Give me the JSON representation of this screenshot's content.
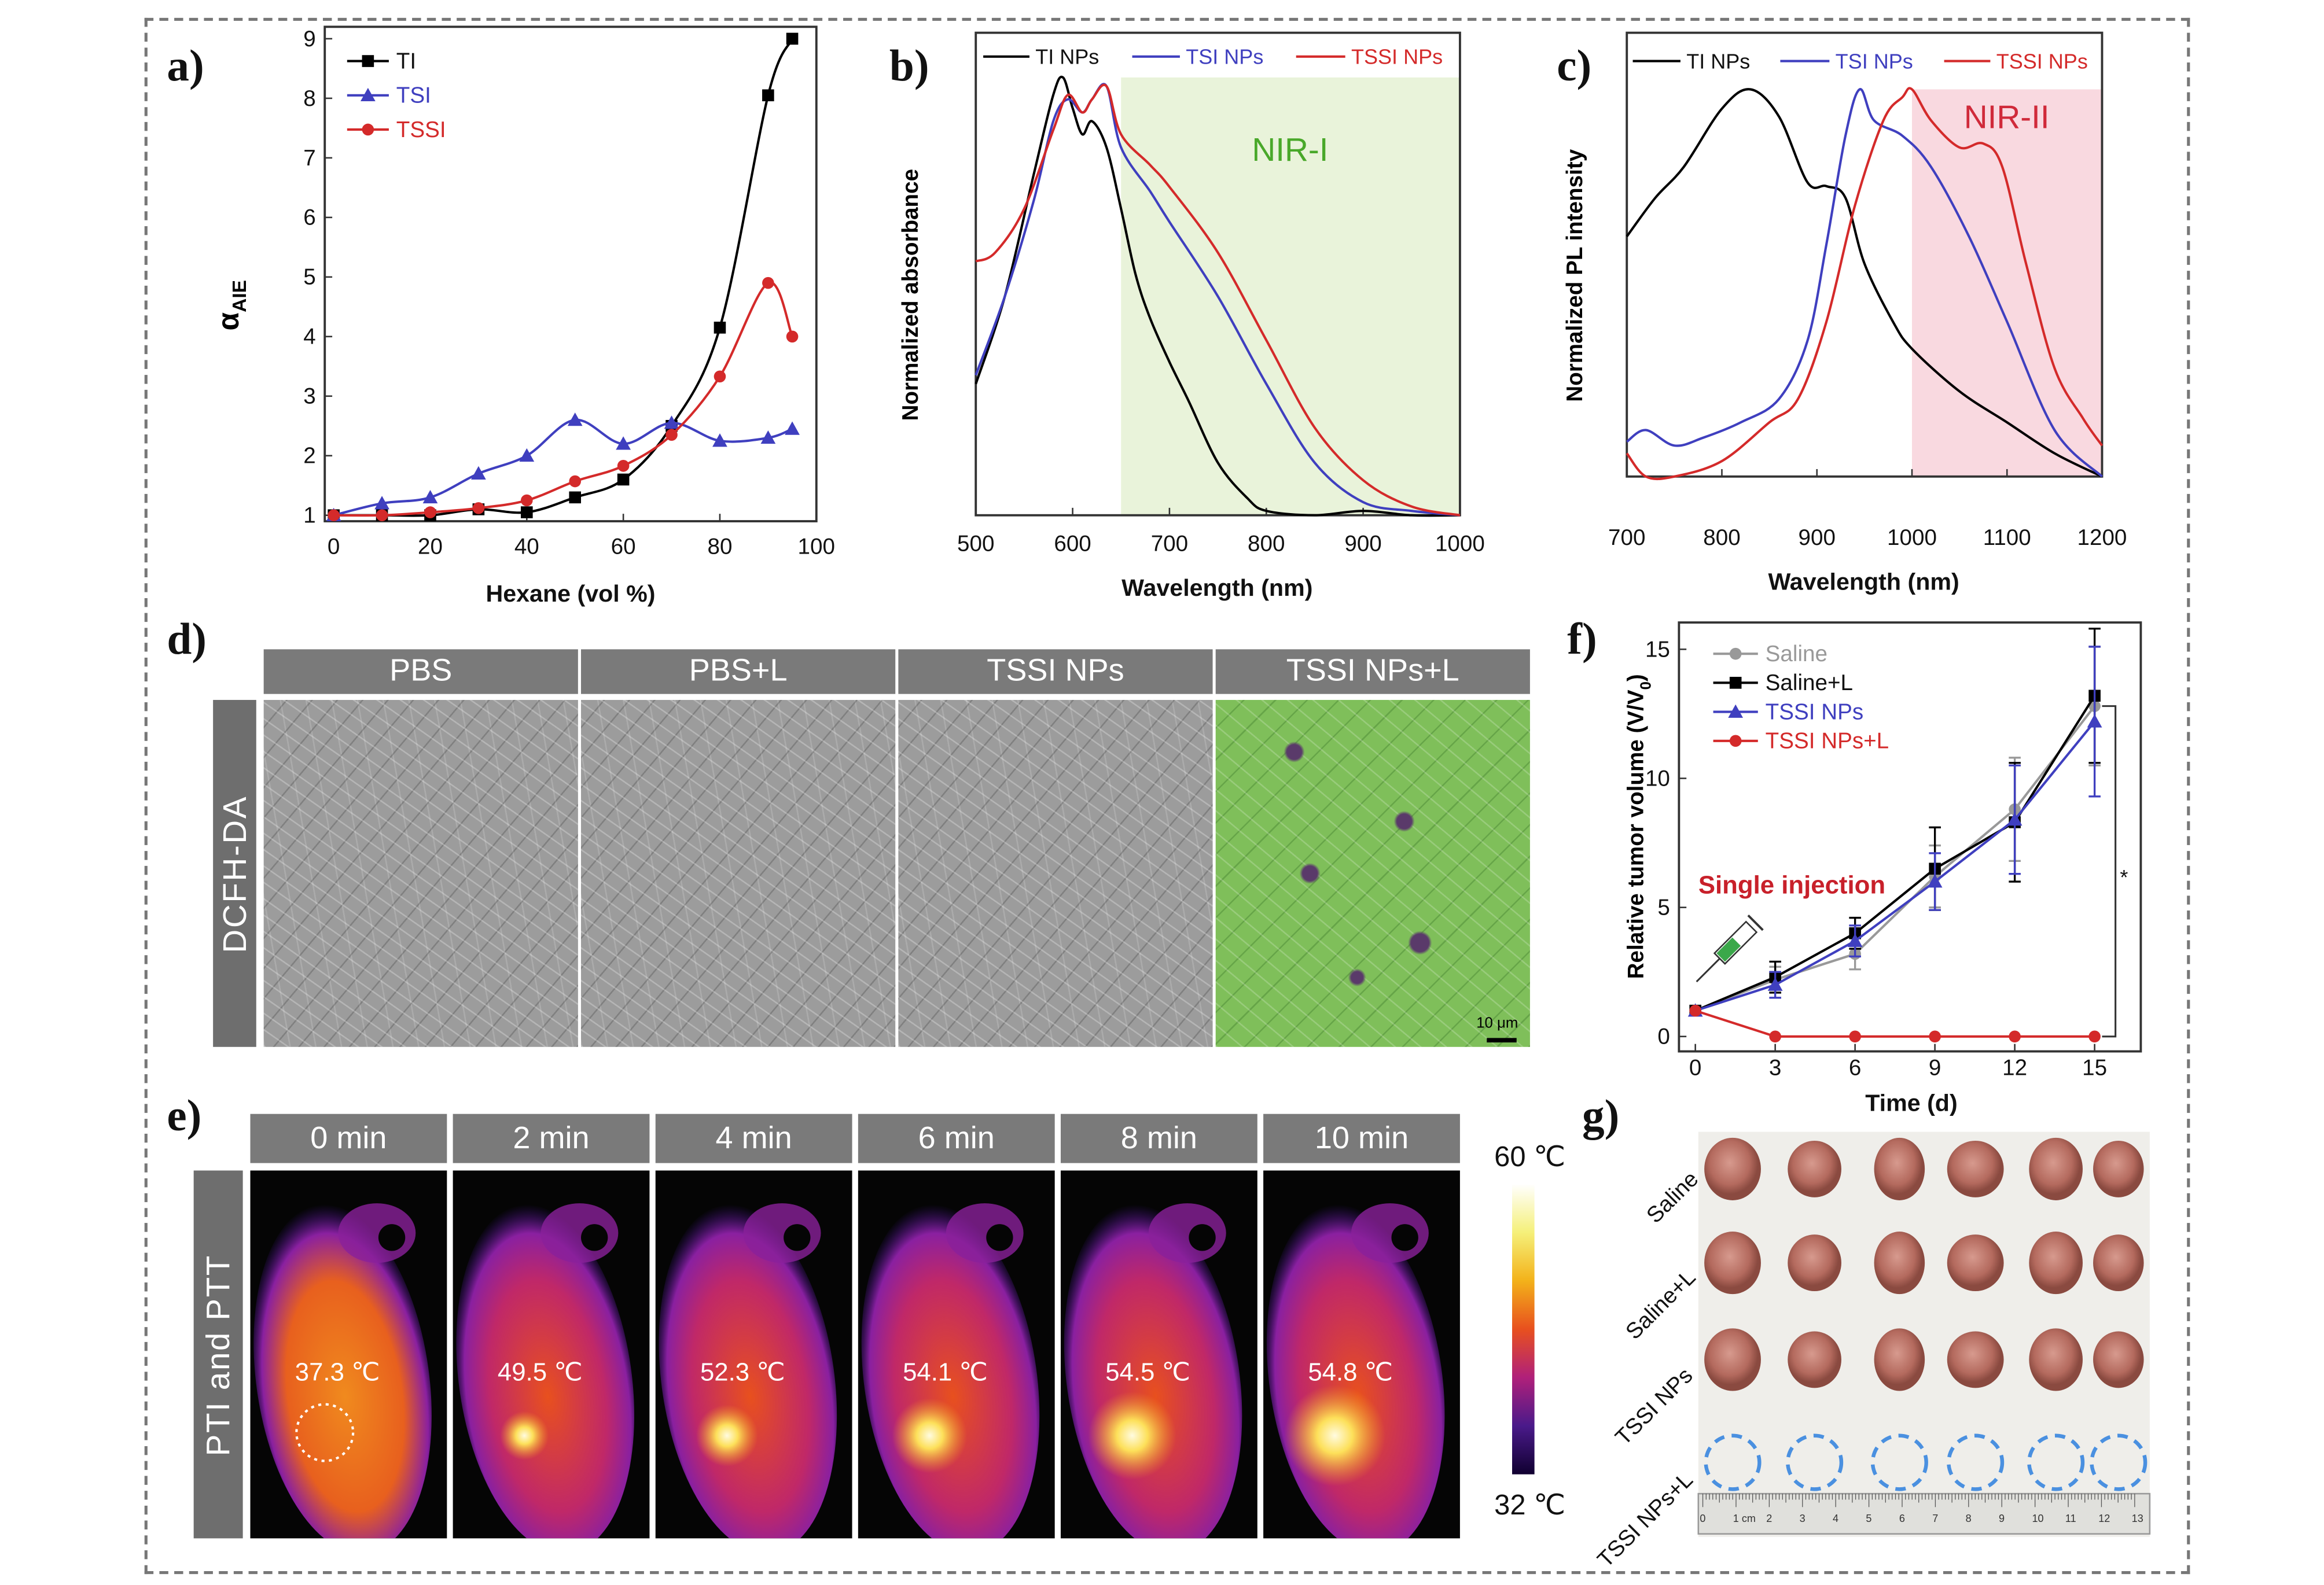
{
  "panel_labels": {
    "a": "a)",
    "b": "b)",
    "c": "c)",
    "d": "d)",
    "e": "e)",
    "f": "f)",
    "g": "g)"
  },
  "chart_data": [
    {
      "panel": "a",
      "type": "line",
      "xlabel": "Hexane (vol %)",
      "ylabel": "α",
      "ylabel_sub": "AIE",
      "xlim": [
        0,
        100
      ],
      "ylim": [
        1,
        9
      ],
      "xticks": [
        0,
        20,
        40,
        60,
        80,
        100
      ],
      "yticks": [
        1,
        2,
        3,
        4,
        5,
        6,
        7,
        8,
        9
      ],
      "legend": "top-left",
      "grid": false,
      "series": [
        {
          "name": "TI",
          "color": "#000000",
          "marker": "square",
          "x": [
            0,
            10,
            20,
            30,
            40,
            50,
            60,
            70,
            80,
            90,
            95
          ],
          "y": [
            1,
            1,
            1,
            1.1,
            1.05,
            1.3,
            1.6,
            2.5,
            4.15,
            8.05,
            9
          ]
        },
        {
          "name": "TSI",
          "color": "#3f3fbf",
          "marker": "triangle",
          "x": [
            0,
            10,
            20,
            30,
            40,
            50,
            60,
            70,
            80,
            90,
            95
          ],
          "y": [
            1,
            1.2,
            1.3,
            1.7,
            2,
            2.6,
            2.2,
            2.55,
            2.25,
            2.3,
            2.45
          ]
        },
        {
          "name": "TSSI",
          "color": "#d42a2a",
          "marker": "circle",
          "x": [
            0,
            10,
            20,
            30,
            40,
            50,
            60,
            70,
            80,
            90,
            95
          ],
          "y": [
            1,
            1,
            1.05,
            1.12,
            1.25,
            1.57,
            1.83,
            2.35,
            3.33,
            4.9,
            4.0
          ]
        }
      ]
    },
    {
      "panel": "b",
      "type": "line",
      "xlabel": "Wavelength (nm)",
      "ylabel": "Normalized absorbance",
      "xlim": [
        500,
        1000
      ],
      "ylim": [
        0,
        1
      ],
      "xticks": [
        500,
        600,
        700,
        800,
        900,
        1000
      ],
      "legend": "top",
      "grid": false,
      "shade": {
        "label": "NIR-I",
        "from": 650,
        "to": 1000,
        "color": "#e9f3da",
        "label_color": "#49a82a"
      },
      "series": [
        {
          "name": "TI NPs",
          "color": "#000000",
          "x": [
            500,
            530,
            560,
            580,
            590,
            600,
            610,
            620,
            635,
            650,
            665,
            680,
            700,
            720,
            750,
            780,
            800,
            850,
            900,
            950,
            1000
          ],
          "y": [
            0.3,
            0.5,
            0.78,
            0.96,
            1.0,
            0.93,
            0.87,
            0.9,
            0.84,
            0.7,
            0.55,
            0.45,
            0.35,
            0.26,
            0.12,
            0.04,
            0.01,
            0,
            0.01,
            0,
            0
          ]
        },
        {
          "name": "TSI NPs",
          "color": "#3f3fbf",
          "x": [
            500,
            530,
            560,
            580,
            595,
            610,
            620,
            635,
            650,
            680,
            700,
            750,
            800,
            850,
            900,
            950,
            1000
          ],
          "y": [
            0.32,
            0.5,
            0.72,
            0.9,
            0.95,
            0.92,
            0.95,
            0.98,
            0.84,
            0.74,
            0.67,
            0.5,
            0.3,
            0.12,
            0.03,
            0.01,
            0
          ]
        },
        {
          "name": "TSSI NPs",
          "color": "#d42a2a",
          "x": [
            500,
            520,
            550,
            580,
            595,
            610,
            620,
            635,
            650,
            680,
            700,
            750,
            800,
            850,
            900,
            950,
            1000
          ],
          "y": [
            0.58,
            0.6,
            0.7,
            0.88,
            0.96,
            0.92,
            0.95,
            0.98,
            0.87,
            0.8,
            0.75,
            0.6,
            0.4,
            0.2,
            0.08,
            0.02,
            0
          ]
        }
      ]
    },
    {
      "panel": "c",
      "type": "line",
      "xlabel": "Wavelength (nm)",
      "ylabel": "Normalized PL intensity",
      "xlim": [
        700,
        1200
      ],
      "ylim": [
        0,
        1
      ],
      "xticks": [
        700,
        800,
        900,
        1000,
        1100,
        1200
      ],
      "legend": "top",
      "grid": false,
      "shade": {
        "label": "NIR-II",
        "from": 1000,
        "to": 1200,
        "color": "#f9d9e0",
        "label_color": "#d02a3a"
      },
      "series": [
        {
          "name": "TI NPs",
          "color": "#000000",
          "x": [
            700,
            730,
            760,
            800,
            830,
            860,
            890,
            910,
            930,
            950,
            980,
            1000,
            1050,
            1100,
            1150,
            1200
          ],
          "y": [
            0.62,
            0.72,
            0.8,
            0.95,
            1.0,
            0.93,
            0.76,
            0.75,
            0.72,
            0.55,
            0.4,
            0.33,
            0.22,
            0.14,
            0.06,
            0
          ]
        },
        {
          "name": "TSI NPs",
          "color": "#3f3fbf",
          "x": [
            700,
            720,
            750,
            780,
            820,
            860,
            890,
            910,
            930,
            945,
            960,
            990,
            1020,
            1060,
            1100,
            1150,
            1200
          ],
          "y": [
            0.09,
            0.12,
            0.08,
            0.1,
            0.14,
            0.2,
            0.35,
            0.6,
            0.88,
            1.0,
            0.92,
            0.88,
            0.8,
            0.62,
            0.4,
            0.12,
            0
          ]
        },
        {
          "name": "TSSI NPs",
          "color": "#d42a2a",
          "x": [
            700,
            720,
            750,
            800,
            850,
            880,
            910,
            940,
            970,
            990,
            1000,
            1020,
            1050,
            1075,
            1095,
            1120,
            1150,
            1180,
            1200
          ],
          "y": [
            0.06,
            0,
            0,
            0.04,
            0.14,
            0.2,
            0.4,
            0.7,
            0.92,
            0.98,
            1.0,
            0.92,
            0.85,
            0.86,
            0.8,
            0.55,
            0.28,
            0.15,
            0.08
          ]
        }
      ]
    },
    {
      "panel": "f",
      "type": "line",
      "xlabel": "Time (d)",
      "ylabel": "Relative tumor volume (V/V",
      "ylabel_sub": "0",
      "ylabel_end": ")",
      "xlim": [
        0,
        15
      ],
      "ylim": [
        0,
        15
      ],
      "xticks": [
        0,
        3,
        6,
        9,
        12,
        15
      ],
      "yticks": [
        0,
        5,
        10,
        15
      ],
      "legend": "top-left",
      "grid": false,
      "annotation": "Single injection",
      "significance": "*",
      "series": [
        {
          "name": "Saline",
          "color": "#999999",
          "marker": "circle",
          "x": [
            0,
            3,
            6,
            9,
            12,
            15
          ],
          "y": [
            1,
            2.2,
            3.2,
            6.2,
            8.8,
            12.8
          ],
          "err": [
            0,
            0.5,
            0.6,
            1.2,
            2.0,
            2.3
          ]
        },
        {
          "name": "Saline+L",
          "color": "#000000",
          "marker": "square",
          "x": [
            0,
            3,
            6,
            9,
            12,
            15
          ],
          "y": [
            1,
            2.3,
            4.0,
            6.5,
            8.3,
            13.2
          ],
          "err": [
            0,
            0.6,
            0.6,
            1.6,
            2.3,
            2.6
          ]
        },
        {
          "name": "TSSI NPs",
          "color": "#3f3fbf",
          "marker": "triangle",
          "x": [
            0,
            3,
            6,
            9,
            12,
            15
          ],
          "y": [
            1,
            2.0,
            3.7,
            6.0,
            8.4,
            12.2
          ],
          "err": [
            0,
            0.5,
            0.6,
            1.1,
            2.1,
            2.9
          ]
        },
        {
          "name": "TSSI NPs+L",
          "color": "#d42a2a",
          "marker": "circle",
          "x": [
            0,
            3,
            6,
            9,
            12,
            15
          ],
          "y": [
            1,
            0,
            0,
            0,
            0,
            0
          ],
          "err": [
            0,
            0,
            0,
            0,
            0,
            0
          ]
        }
      ]
    }
  ],
  "panel_d": {
    "side_label": "DCFH-DA",
    "columns": [
      "PBS",
      "PBS+L",
      "TSSI NPs",
      "TSSI NPs+L"
    ],
    "scale_bar": "10 μm"
  },
  "panel_e": {
    "side_label": "PTI and PTT",
    "columns": [
      "0 min",
      "2 min",
      "4 min",
      "6 min",
      "8 min",
      "10 min"
    ],
    "temperatures": [
      "37.3 ℃",
      "49.5 ℃",
      "52.3 ℃",
      "54.1 ℃",
      "54.5 ℃",
      "54.8 ℃"
    ],
    "colorbar": {
      "max_label": "60 ℃",
      "min_label": "32 ℃"
    }
  },
  "panel_g": {
    "rows": [
      "Saline",
      "Saline+L",
      "TSSI NPs",
      "TSSI NPs+L"
    ],
    "ruler_labels": [
      "0",
      "1 cm",
      "2",
      "3",
      "4",
      "5",
      "6",
      "7",
      "8",
      "9",
      "10",
      "11",
      "12",
      "13"
    ]
  }
}
